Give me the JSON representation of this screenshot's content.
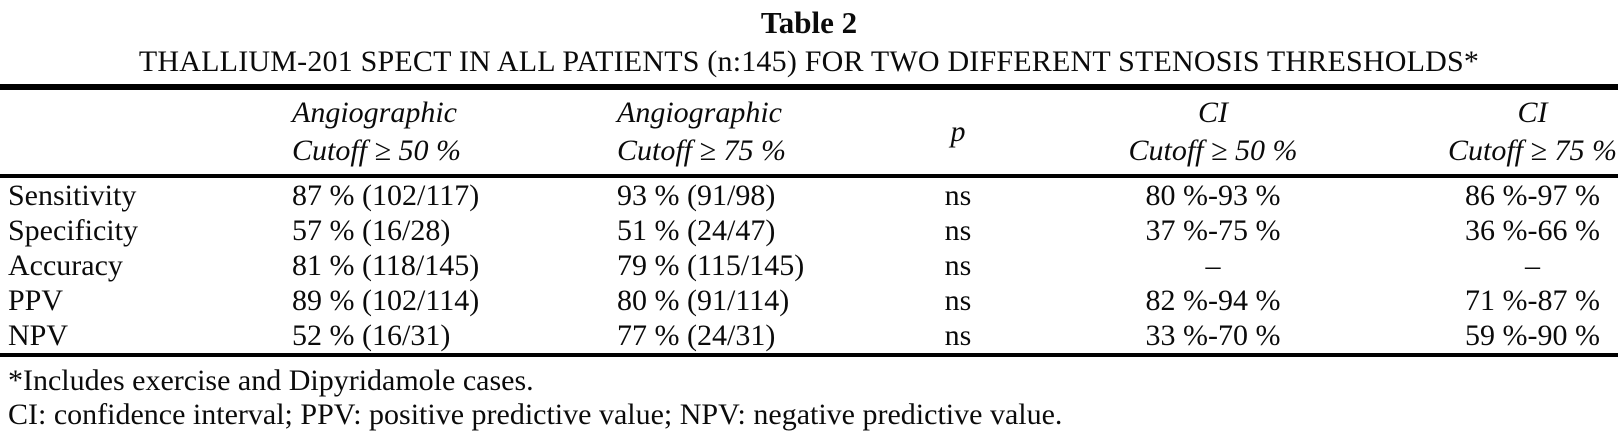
{
  "page": {
    "title": "Table 2",
    "subtitle": "THALLIUM-201 SPECT IN ALL PATIENTS (n:145) FOR TWO DIFFERENT STENOSIS THRESHOLDS*"
  },
  "table": {
    "header": {
      "col_label": "",
      "col_angio50": {
        "line1": "Angiographic",
        "line2": "Cutoff ≥ 50 %"
      },
      "col_angio75": {
        "line1": "Angiographic",
        "line2": "Cutoff ≥ 75 %"
      },
      "col_p": "p",
      "col_ci50": {
        "line1": "CI",
        "line2": "Cutoff ≥ 50 %"
      },
      "col_ci75": {
        "line1": "CI",
        "line2": "Cutoff ≥ 75 %"
      }
    },
    "rows": [
      {
        "label": "Sensitivity",
        "angio50": "87 % (102/117)",
        "angio75": "93 % (91/98)",
        "p": "ns",
        "ci50": "80 %-93 %",
        "ci75": "86 %-97 %"
      },
      {
        "label": "Specificity",
        "angio50": "57 % (16/28)",
        "angio75": "51 % (24/47)",
        "p": "ns",
        "ci50": "37 %-75 %",
        "ci75": "36 %-66 %"
      },
      {
        "label": "Accuracy",
        "angio50": "81 % (118/145)",
        "angio75": "79 % (115/145)",
        "p": "ns",
        "ci50": "–",
        "ci75": "–"
      },
      {
        "label": "PPV",
        "angio50": "89 % (102/114)",
        "angio75": "80 % (91/114)",
        "p": "ns",
        "ci50": "82 %-94 %",
        "ci75": "71 %-87 %"
      },
      {
        "label": "NPV",
        "angio50": "52 % (16/31)",
        "angio75": "77 % (24/31)",
        "p": "ns",
        "ci50": "33 %-70 %",
        "ci75": "59 %-90 %"
      }
    ]
  },
  "footnotes": [
    "*Includes exercise and Dipyridamole cases.",
    "CI: confidence interval; PPV: positive predictive value; NPV: negative predictive value."
  ]
}
